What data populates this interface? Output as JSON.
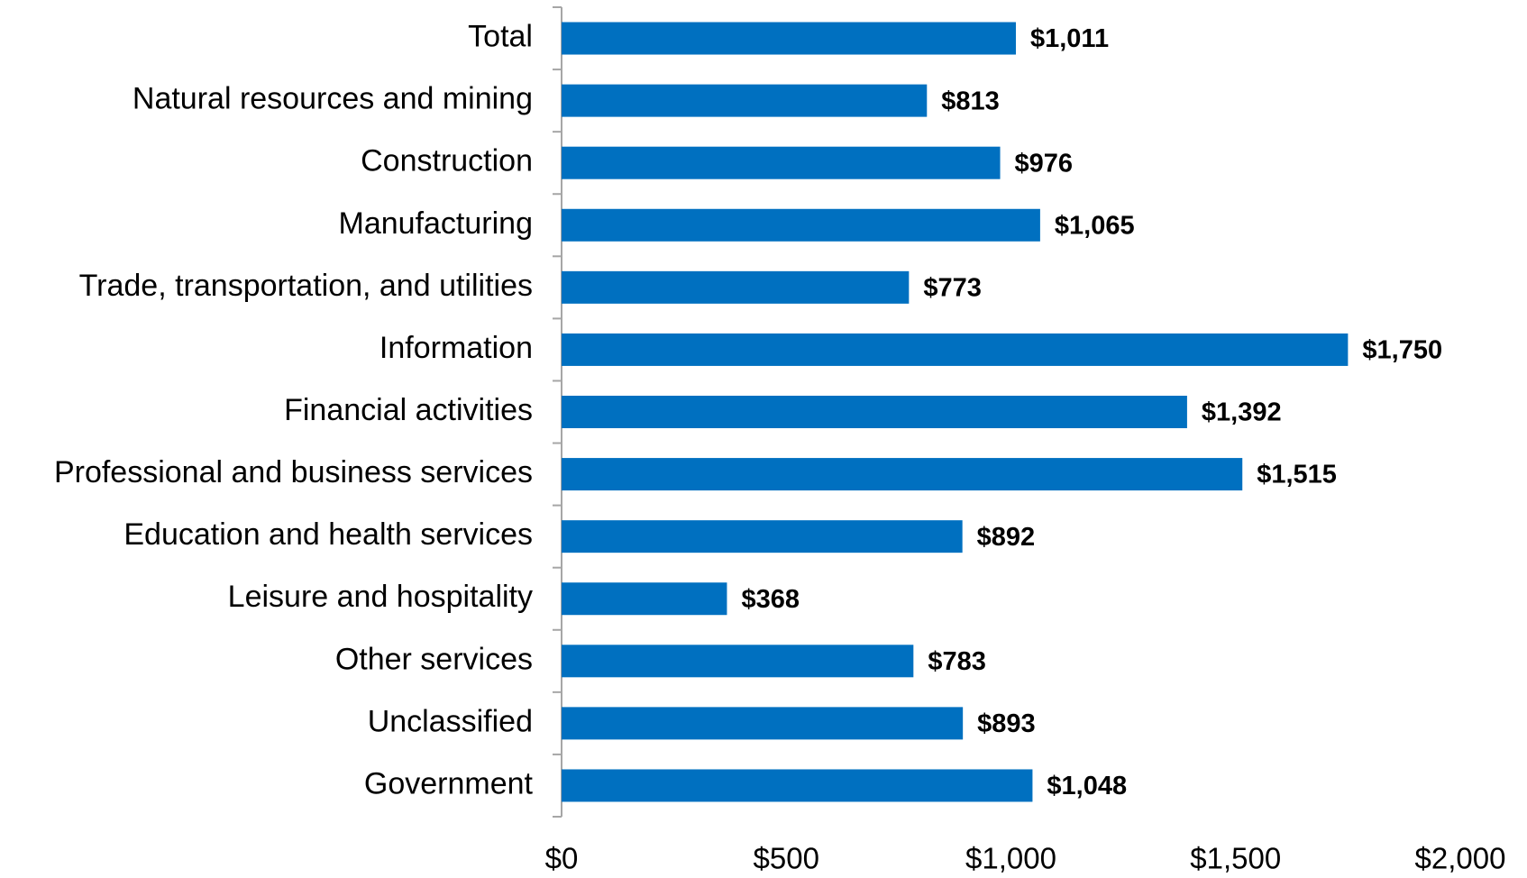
{
  "chart_data": {
    "type": "bar",
    "orientation": "horizontal",
    "categories": [
      "Total",
      "Natural resources and mining",
      "Construction",
      "Manufacturing",
      "Trade, transportation, and utilities",
      "Information",
      "Financial activities",
      "Professional and business services",
      "Education and health services",
      "Leisure and hospitality",
      "Other services",
      "Unclassified",
      "Government"
    ],
    "values": [
      1011,
      813,
      976,
      1065,
      773,
      1750,
      1392,
      1515,
      892,
      368,
      783,
      893,
      1048
    ],
    "value_labels": [
      "$1,011",
      "$813",
      "$976",
      "$1,065",
      "$773",
      "$1,750",
      "$1,392",
      "$1,515",
      "$892",
      "$368",
      "$783",
      "$893",
      "$1,048"
    ],
    "color": "#0070c0",
    "xlim": [
      0,
      2000
    ],
    "xticks": [
      {
        "value": 0,
        "label": "$0"
      },
      {
        "value": 500,
        "label": "$500"
      },
      {
        "value": 1000,
        "label": "$1,000"
      },
      {
        "value": 1500,
        "label": "$1,500"
      },
      {
        "value": 2000,
        "label": "$2,000"
      }
    ],
    "grid": false
  }
}
